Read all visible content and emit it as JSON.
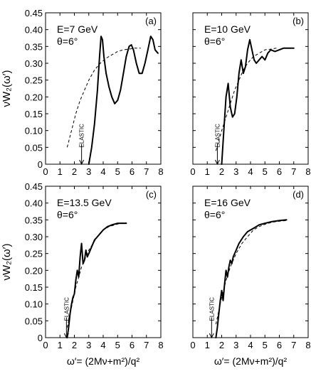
{
  "chart_data": [
    {
      "type": "line",
      "panel_label": "(a)",
      "annotation": [
        "E=7 GeV",
        "θ=6°"
      ],
      "ylabel": "νW₂(ω′)",
      "xlabel": "",
      "xlim": [
        0,
        8
      ],
      "ylim": [
        0,
        0.45
      ],
      "xticks": [
        "0",
        "1",
        "2",
        "3",
        "4",
        "5",
        "6",
        "7",
        "8"
      ],
      "yticks": [
        "0",
        "0.05",
        "0.10",
        "0.15",
        "0.20",
        "0.25",
        "0.30",
        "0.35",
        "0.40",
        "0.45"
      ],
      "elastic_label": "ELASTIC",
      "elastic_x": 2.5,
      "series": [
        {
          "style": "solid",
          "x": [
            3.0,
            3.2,
            3.4,
            3.6,
            3.75,
            3.85,
            3.95,
            4.05,
            4.2,
            4.4,
            4.6,
            4.8,
            5.0,
            5.2,
            5.4,
            5.6,
            5.8,
            5.95,
            6.1,
            6.3,
            6.5,
            6.7,
            6.9,
            7.1,
            7.3,
            7.45,
            7.6,
            7.8
          ],
          "y": [
            0.0,
            0.05,
            0.12,
            0.22,
            0.32,
            0.38,
            0.37,
            0.32,
            0.27,
            0.23,
            0.2,
            0.18,
            0.19,
            0.22,
            0.27,
            0.32,
            0.35,
            0.355,
            0.34,
            0.3,
            0.27,
            0.27,
            0.3,
            0.34,
            0.38,
            0.37,
            0.34,
            0.33
          ]
        },
        {
          "style": "dashed",
          "x": [
            1.5,
            1.8,
            2.1,
            2.4,
            2.7,
            3.0,
            3.4,
            3.8,
            4.2,
            4.6,
            5.0,
            5.4,
            5.8,
            6.2,
            6.6
          ],
          "y": [
            0.05,
            0.1,
            0.15,
            0.19,
            0.22,
            0.25,
            0.28,
            0.3,
            0.315,
            0.325,
            0.335,
            0.34,
            0.342,
            0.345,
            0.345
          ]
        }
      ]
    },
    {
      "type": "line",
      "panel_label": "(b)",
      "annotation": [
        "E=10 GeV",
        "θ=6°"
      ],
      "ylabel": "",
      "xlabel": "",
      "xlim": [
        0,
        8
      ],
      "ylim": [
        0,
        0.45
      ],
      "xticks": [
        "0",
        "1",
        "2",
        "3",
        "4",
        "5",
        "6",
        "7",
        "8"
      ],
      "yticks": [],
      "elastic_label": "ELASTIC",
      "elastic_x": 1.7,
      "series": [
        {
          "style": "solid",
          "x": [
            2.0,
            2.15,
            2.3,
            2.45,
            2.6,
            2.75,
            2.9,
            3.05,
            3.2,
            3.35,
            3.5,
            3.65,
            3.8,
            3.95,
            4.1,
            4.25,
            4.4,
            4.6,
            4.8,
            5.0,
            5.2,
            5.4,
            5.7,
            6.0,
            6.3,
            6.6,
            7.0
          ],
          "y": [
            0.0,
            0.1,
            0.2,
            0.24,
            0.17,
            0.14,
            0.15,
            0.2,
            0.27,
            0.31,
            0.27,
            0.29,
            0.34,
            0.37,
            0.34,
            0.31,
            0.3,
            0.31,
            0.32,
            0.31,
            0.33,
            0.34,
            0.335,
            0.34,
            0.345,
            0.345,
            0.345
          ]
        },
        {
          "style": "dashed",
          "x": [
            1.6,
            1.8,
            2.0,
            2.3,
            2.6,
            2.9,
            3.2,
            3.5,
            3.8,
            4.2,
            4.6,
            5.0,
            5.4,
            5.8
          ],
          "y": [
            0.04,
            0.07,
            0.1,
            0.14,
            0.18,
            0.22,
            0.25,
            0.28,
            0.3,
            0.32,
            0.33,
            0.34,
            0.342,
            0.345
          ]
        }
      ]
    },
    {
      "type": "line",
      "panel_label": "(c)",
      "annotation": [
        "E=13.5 GeV",
        "θ=6°"
      ],
      "ylabel": "νW₂(ω′)",
      "xlabel": "ω′= (2Mν+m²)/q²",
      "xlim": [
        0,
        8
      ],
      "ylim": [
        0,
        0.45
      ],
      "xticks": [
        "0",
        "1",
        "2",
        "3",
        "4",
        "5",
        "6",
        "7",
        "8"
      ],
      "yticks": [
        "0",
        "0.05",
        "0.10",
        "0.15",
        "0.20",
        "0.25",
        "0.30",
        "0.35",
        "0.40",
        "0.45"
      ],
      "elastic_label": "ELASTIC",
      "elastic_x": 1.45,
      "series": [
        {
          "style": "solid",
          "x": [
            1.5,
            1.6,
            1.7,
            1.8,
            1.9,
            2.0,
            2.1,
            2.2,
            2.3,
            2.4,
            2.5,
            2.6,
            2.7,
            2.8,
            2.9,
            3.0,
            3.2,
            3.4,
            3.6,
            3.8,
            4.0,
            4.3,
            4.6,
            5.0,
            5.3,
            5.6
          ],
          "y": [
            0.0,
            0.03,
            0.07,
            0.1,
            0.12,
            0.13,
            0.17,
            0.2,
            0.18,
            0.24,
            0.28,
            0.22,
            0.23,
            0.26,
            0.24,
            0.25,
            0.27,
            0.29,
            0.3,
            0.31,
            0.32,
            0.33,
            0.335,
            0.34,
            0.34,
            0.34
          ]
        },
        {
          "style": "dashed",
          "x": [
            1.5,
            1.7,
            1.9,
            2.1,
            2.3,
            2.5,
            2.7,
            3.0,
            3.3,
            3.6,
            4.0,
            4.4,
            4.8,
            5.2,
            5.6
          ],
          "y": [
            0.03,
            0.07,
            0.11,
            0.15,
            0.18,
            0.21,
            0.23,
            0.26,
            0.28,
            0.3,
            0.32,
            0.33,
            0.335,
            0.34,
            0.342
          ]
        }
      ]
    },
    {
      "type": "line",
      "panel_label": "(d)",
      "annotation": [
        "E=16 GeV",
        "θ=6°"
      ],
      "ylabel": "",
      "xlabel": "ω′= (2Mν+m²)/q²",
      "xlim": [
        0,
        8
      ],
      "ylim": [
        0,
        0.45
      ],
      "xticks": [
        "0",
        "1",
        "2",
        "3",
        "4",
        "5",
        "6",
        "7",
        "8"
      ],
      "yticks": [],
      "elastic_label": "ELASTIC",
      "elastic_x": 1.3,
      "series": [
        {
          "style": "solid",
          "x": [
            1.6,
            1.7,
            1.8,
            1.9,
            2.0,
            2.1,
            2.2,
            2.3,
            2.4,
            2.5,
            2.6,
            2.7,
            2.8,
            3.0,
            3.2,
            3.5,
            3.8,
            4.2,
            4.6,
            5.0,
            5.5,
            6.0,
            6.5
          ],
          "y": [
            0.0,
            0.03,
            0.07,
            0.11,
            0.14,
            0.11,
            0.16,
            0.2,
            0.18,
            0.21,
            0.23,
            0.22,
            0.24,
            0.26,
            0.28,
            0.3,
            0.315,
            0.325,
            0.335,
            0.34,
            0.345,
            0.348,
            0.35
          ]
        },
        {
          "style": "dashed",
          "x": [
            1.6,
            1.8,
            2.0,
            2.3,
            2.6,
            3.0,
            3.4,
            3.8,
            4.2,
            4.6,
            5.0,
            5.5,
            6.0,
            6.5
          ],
          "y": [
            0.04,
            0.08,
            0.12,
            0.17,
            0.21,
            0.25,
            0.28,
            0.3,
            0.32,
            0.33,
            0.337,
            0.343,
            0.346,
            0.348
          ]
        }
      ]
    }
  ]
}
